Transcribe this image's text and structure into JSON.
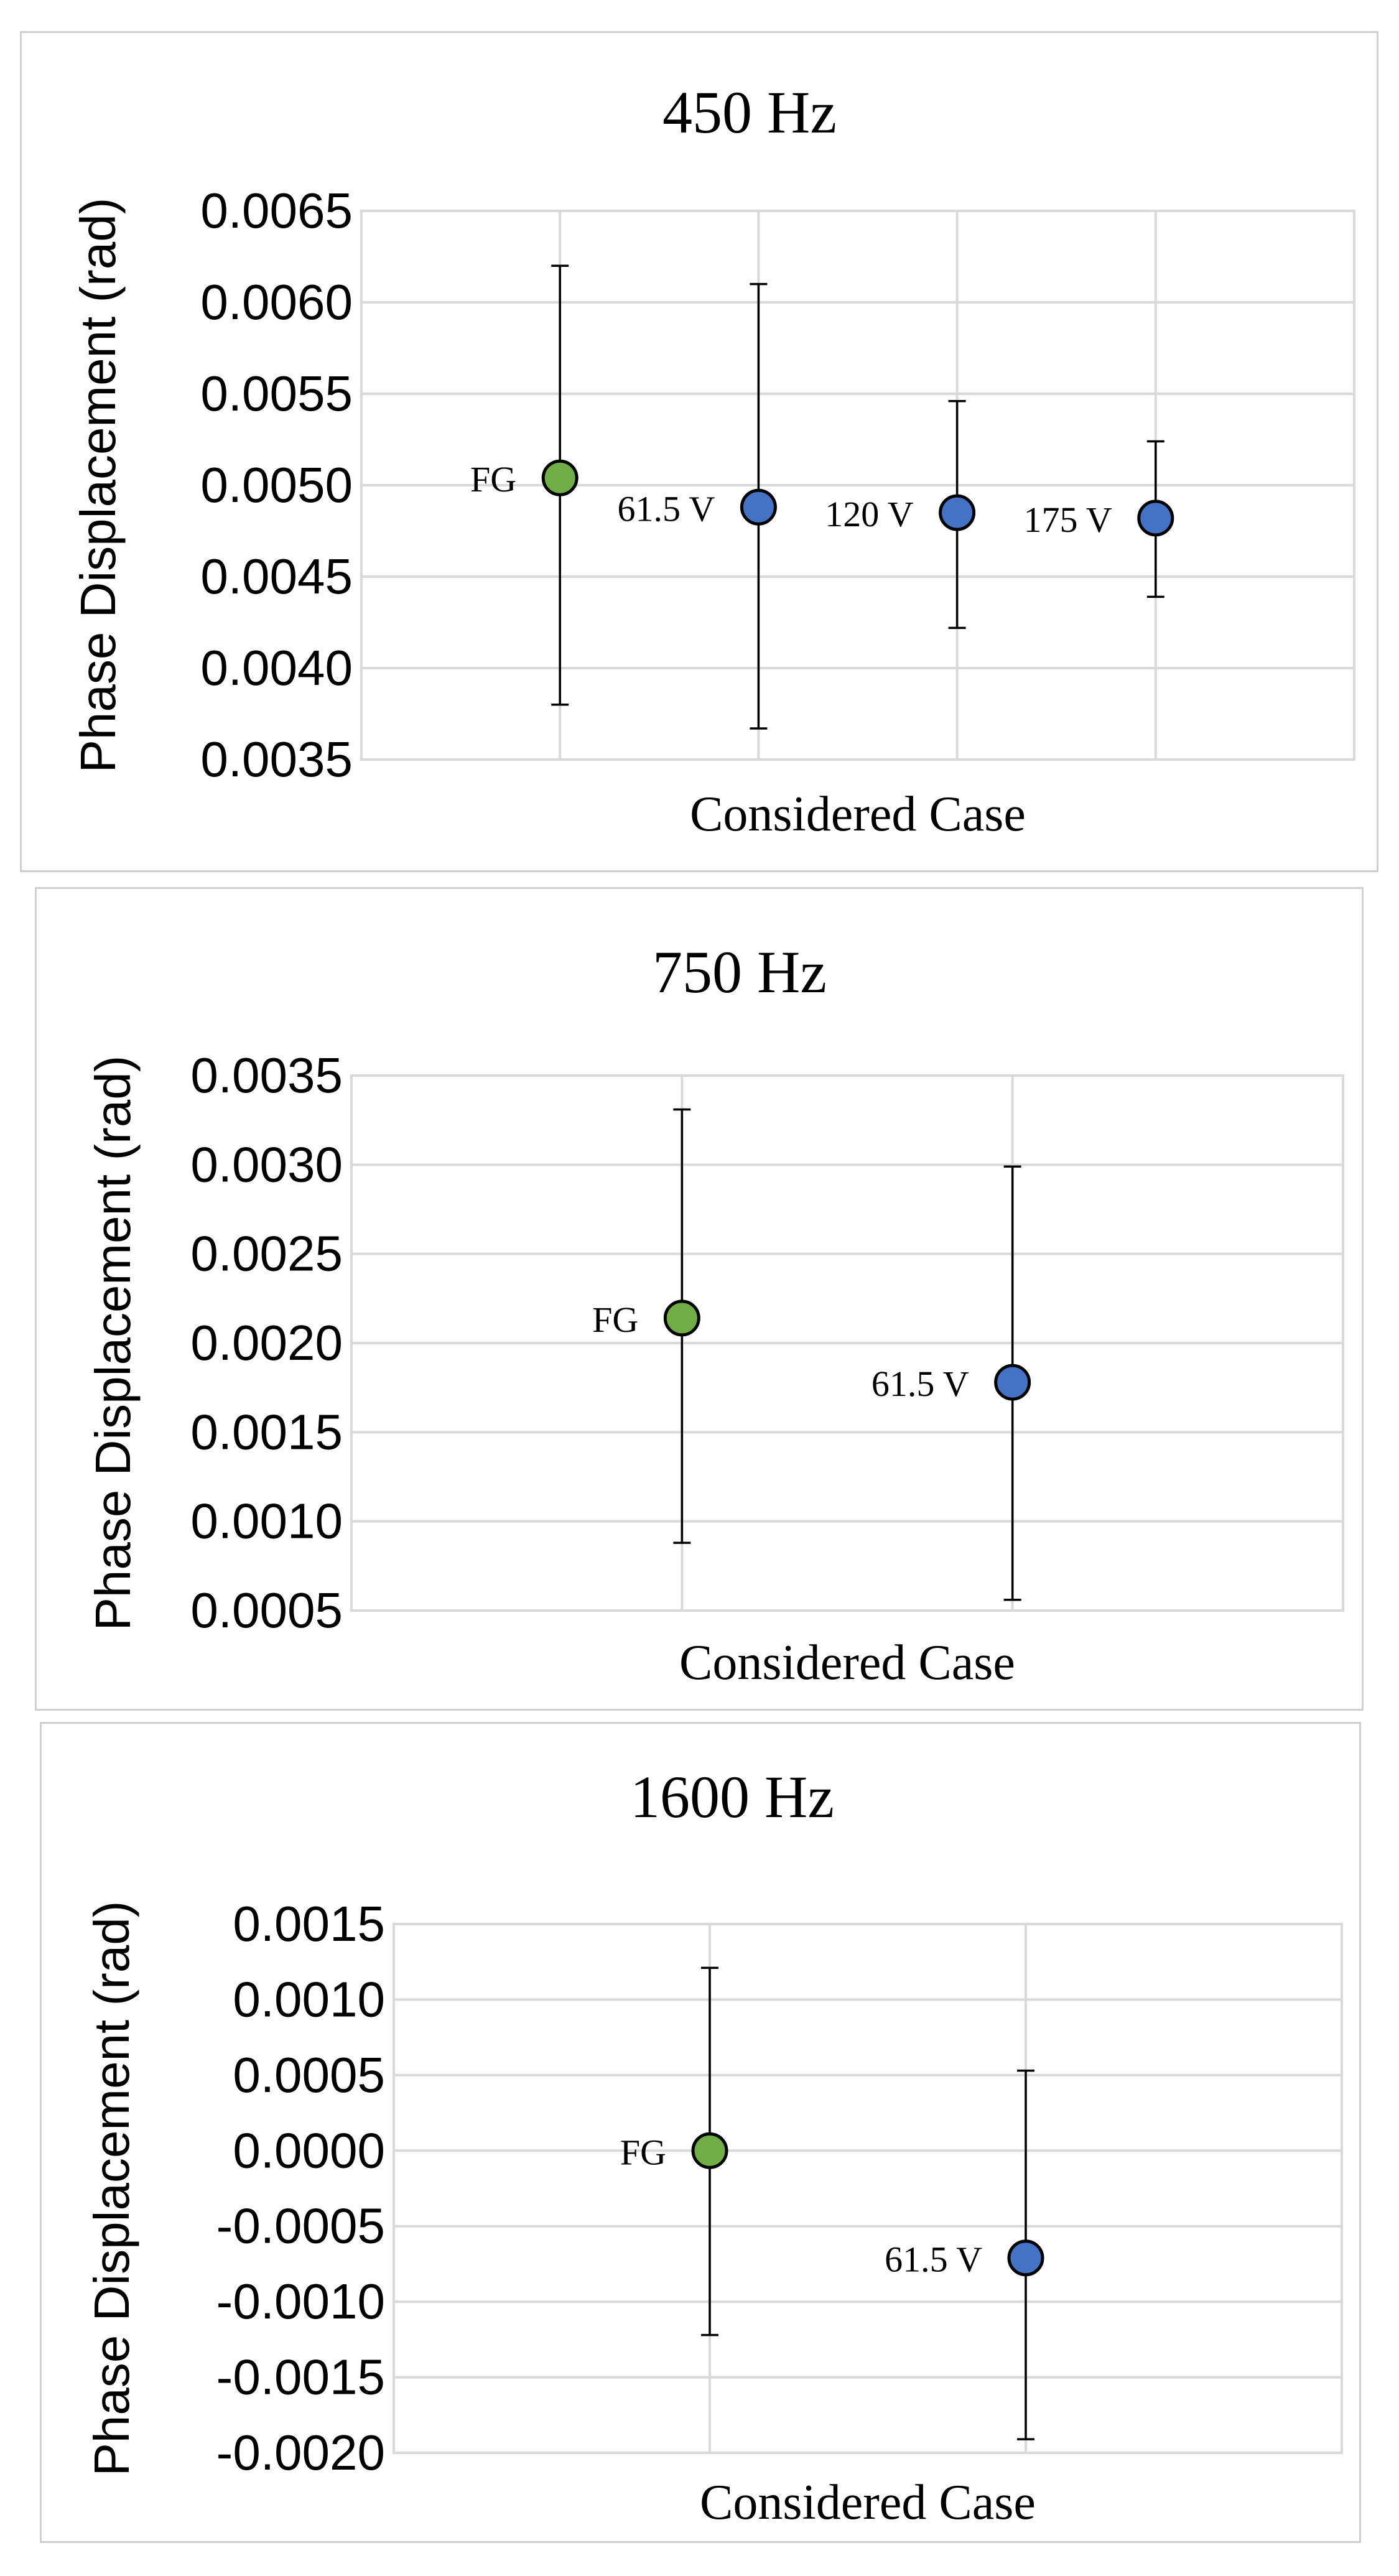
{
  "colors": {
    "fg": "#70ad47",
    "voltage": "#4472c4"
  },
  "chart_data": [
    {
      "type": "scatter",
      "title": "450 Hz",
      "xlabel": "Considered Case",
      "ylabel": "Phase Displacement (rad)",
      "ylim": [
        0.0035,
        0.0065
      ],
      "yticks": [
        "0.0065",
        "0.0060",
        "0.0055",
        "0.0050",
        "0.0045",
        "0.0040",
        "0.0035"
      ],
      "xlim": [
        0,
        5
      ],
      "grid": true,
      "points": [
        {
          "label": "FG",
          "x": 1,
          "y": 0.00504,
          "err_low": 0.0038,
          "err_high": 0.0062,
          "color": "#70ad47"
        },
        {
          "label": "61.5 V",
          "x": 2,
          "y": 0.00488,
          "err_low": 0.00367,
          "err_high": 0.0061,
          "color": "#4472c4"
        },
        {
          "label": "120 V",
          "x": 3,
          "y": 0.00485,
          "err_low": 0.00422,
          "err_high": 0.00546,
          "color": "#4472c4"
        },
        {
          "label": "175 V",
          "x": 4,
          "y": 0.00482,
          "err_low": 0.00439,
          "err_high": 0.00524,
          "color": "#4472c4"
        }
      ]
    },
    {
      "type": "scatter",
      "title": "750 Hz",
      "xlabel": "Considered Case",
      "ylabel": "Phase Displacement (rad)",
      "ylim": [
        0.0005,
        0.0035
      ],
      "yticks": [
        "0.0035",
        "0.0030",
        "0.0025",
        "0.0020",
        "0.0015",
        "0.0010",
        "0.0005"
      ],
      "xlim": [
        0,
        3
      ],
      "grid": true,
      "points": [
        {
          "label": "FG",
          "x": 1,
          "y": 0.00214,
          "err_low": 0.00088,
          "err_high": 0.00331,
          "color": "#70ad47"
        },
        {
          "label": "61.5 V",
          "x": 2,
          "y": 0.00178,
          "err_low": 0.00056,
          "err_high": 0.00299,
          "color": "#4472c4"
        }
      ]
    },
    {
      "type": "scatter",
      "title": "1600 Hz",
      "xlabel": "Considered Case",
      "ylabel": "Phase Displacement (rad)",
      "ylim": [
        -0.002,
        0.0015
      ],
      "yticks": [
        "0.0015",
        "0.0010",
        "0.0005",
        "0.0000",
        "-0.0005",
        "-0.0010",
        "-0.0015",
        "-0.0020"
      ],
      "xlim": [
        0,
        3
      ],
      "grid": true,
      "points": [
        {
          "label": "FG",
          "x": 1,
          "y": 0.0,
          "err_low": -0.00122,
          "err_high": 0.00121,
          "color": "#70ad47"
        },
        {
          "label": "61.5 V",
          "x": 2,
          "y": -0.00071,
          "err_low": -0.00191,
          "err_high": 0.00053,
          "color": "#4472c4"
        }
      ]
    }
  ]
}
